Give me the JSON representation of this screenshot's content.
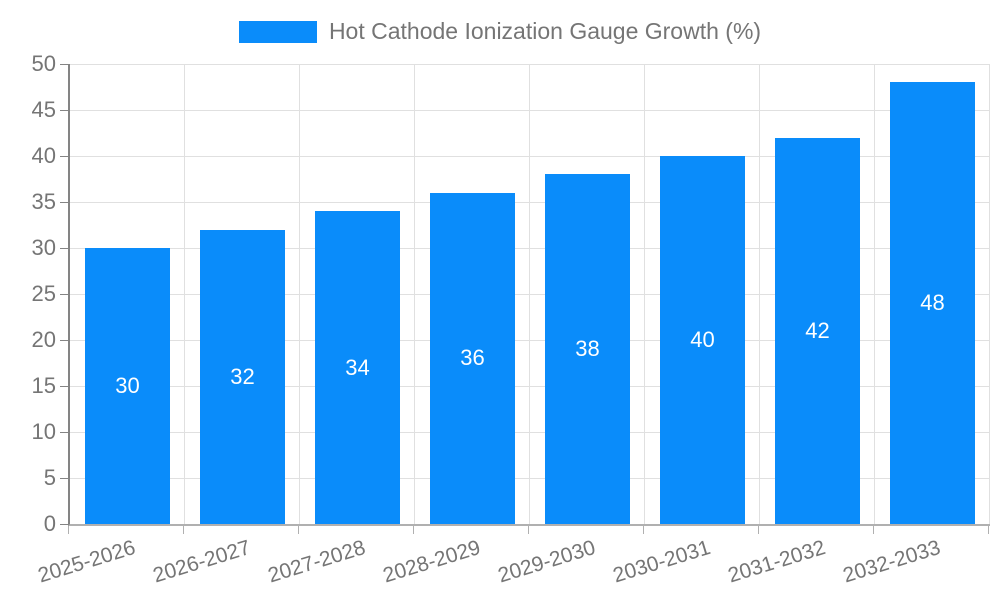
{
  "legend": {
    "label": "Hot Cathode Ionization Gauge Growth (%)",
    "swatch_color": "#0a8cfa"
  },
  "chart_data": {
    "type": "bar",
    "title": "Hot Cathode Ionization Gauge Growth (%)",
    "categories": [
      "2025-2026",
      "2026-2027",
      "2027-2028",
      "2028-2029",
      "2029-2030",
      "2030-2031",
      "2031-2032",
      "2032-2033"
    ],
    "values": [
      30,
      32,
      34,
      36,
      38,
      40,
      42,
      48
    ],
    "xlabel": "",
    "ylabel": "",
    "ylim": [
      0,
      50
    ],
    "yticks": [
      0,
      5,
      10,
      15,
      20,
      25,
      30,
      35,
      40,
      45,
      50
    ],
    "grid": true,
    "legend_position": "top",
    "bar_color": "#0a8cfa",
    "value_label_color": "#ffffff",
    "axis_text_color": "#757575",
    "grid_color": "#e0e0e0"
  }
}
